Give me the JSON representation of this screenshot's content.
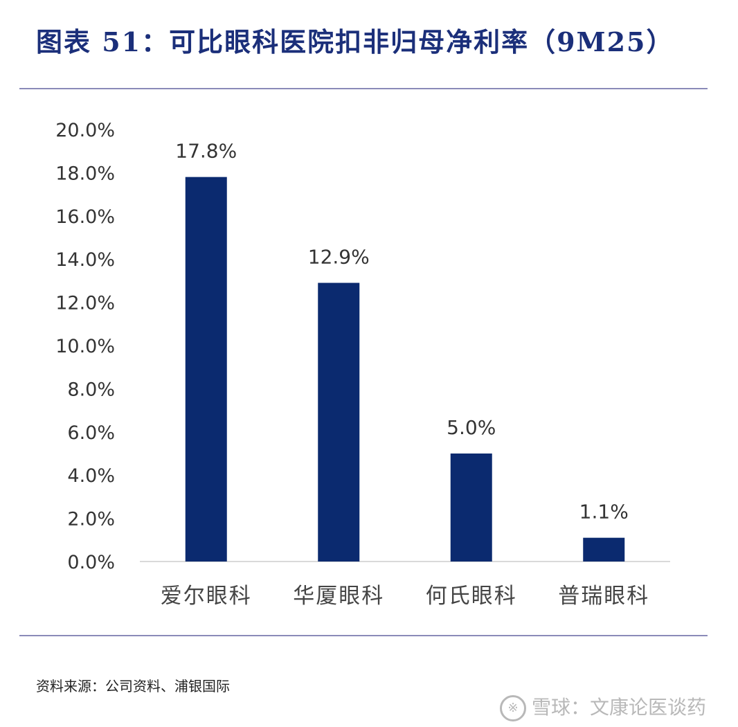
{
  "title": "图表 51：可比眼科医院扣非归母净利率（9M25）",
  "source": "资料来源：公司资料、浦银国际",
  "watermark": {
    "icon": "snowball-icon",
    "text": "雪球：文康论医谈药"
  },
  "colors": {
    "bar": "#0b2a6f",
    "axis": "#d9d9d9",
    "rule": "#8a8ab8",
    "title": "#1b2f7a"
  },
  "chart_data": {
    "type": "bar",
    "categories": [
      "爱尔眼科",
      "华厦眼科",
      "何氏眼科",
      "普瑞眼科"
    ],
    "values": [
      17.8,
      12.9,
      5.0,
      1.1
    ],
    "data_labels": [
      "17.8%",
      "12.9%",
      "5.0%",
      "1.1%"
    ],
    "ylim": [
      0,
      20
    ],
    "yticks": [
      0,
      2,
      4,
      6,
      8,
      10,
      12,
      14,
      16,
      18,
      20
    ],
    "ytick_labels": [
      "0.0%",
      "2.0%",
      "4.0%",
      "6.0%",
      "8.0%",
      "10.0%",
      "12.0%",
      "14.0%",
      "16.0%",
      "18.0%",
      "20.0%"
    ],
    "grid": false,
    "legend": "none"
  }
}
